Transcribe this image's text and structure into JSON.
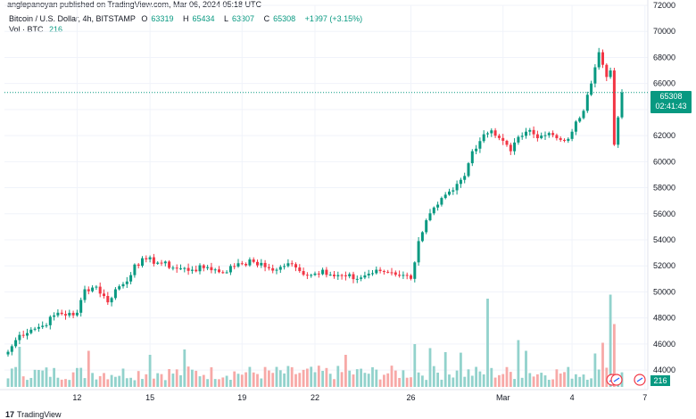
{
  "header": {
    "caption": "anglepanoyan published on TradingView.com, Mar 06, 2024 05:18 UTC"
  },
  "legend": {
    "symbol": "Bitcoin / U.S. Dollar, 4h, BITSTAMP",
    "o_label": "O",
    "o_value": "63319",
    "h_label": "H",
    "h_value": "65434",
    "l_label": "L",
    "l_value": "63307",
    "c_label": "C",
    "c_value": "65308",
    "change": "+1997 (+3.15%)",
    "vol_label": "Vol · BTC",
    "vol_value": "216"
  },
  "price_tag": {
    "price": "65308",
    "countdown": "02:41:43"
  },
  "volume_tag": {
    "value": "216"
  },
  "footer": {
    "logo_text": "TradingView"
  },
  "colors": {
    "up": "#089981",
    "down": "#f23645",
    "up_vol": "#92d2cc",
    "down_vol": "#f7a9a7",
    "grid": "#f0f3fa",
    "price_line": "#089981"
  },
  "chart_data": {
    "type": "candlestick",
    "ylim": [
      42500,
      72000
    ],
    "y_ticks": [
      44000,
      46000,
      48000,
      50000,
      52000,
      54000,
      56000,
      58000,
      60000,
      62000,
      64000,
      66000,
      68000,
      70000,
      72000
    ],
    "x_ticks": [
      "12",
      "15",
      "19",
      "22",
      "26",
      "Mar",
      "4",
      "7"
    ],
    "x_tick_index": [
      18,
      37,
      61,
      80,
      105,
      129,
      147,
      166
    ],
    "last_price": 65308,
    "anchors": [
      [
        0,
        45400
      ],
      [
        3,
        46700
      ],
      [
        6,
        47100
      ],
      [
        9,
        47400
      ],
      [
        13,
        48400
      ],
      [
        17,
        48200
      ],
      [
        18,
        48400
      ],
      [
        20,
        50200
      ],
      [
        23,
        50400
      ],
      [
        26,
        49200
      ],
      [
        28,
        50200
      ],
      [
        31,
        50800
      ],
      [
        33,
        52100
      ],
      [
        36,
        52500
      ],
      [
        40,
        52200
      ],
      [
        44,
        51800
      ],
      [
        48,
        51700
      ],
      [
        52,
        51900
      ],
      [
        56,
        51500
      ],
      [
        60,
        52200
      ],
      [
        64,
        52300
      ],
      [
        67,
        51900
      ],
      [
        70,
        51700
      ],
      [
        73,
        52200
      ],
      [
        76,
        51600
      ],
      [
        79,
        51300
      ],
      [
        82,
        51700
      ],
      [
        85,
        51200
      ],
      [
        88,
        51200
      ],
      [
        91,
        51000
      ],
      [
        94,
        51400
      ],
      [
        97,
        51600
      ],
      [
        100,
        51500
      ],
      [
        103,
        51300
      ],
      [
        105,
        51000
      ],
      [
        107,
        53900
      ],
      [
        109,
        55500
      ],
      [
        112,
        56700
      ],
      [
        116,
        57800
      ],
      [
        119,
        58900
      ],
      [
        121,
        60800
      ],
      [
        124,
        62100
      ],
      [
        126,
        62400
      ],
      [
        129,
        61600
      ],
      [
        131,
        60800
      ],
      [
        133,
        61900
      ],
      [
        135,
        62300
      ],
      [
        137,
        62100
      ],
      [
        139,
        62000
      ],
      [
        141,
        62200
      ],
      [
        143,
        61800
      ],
      [
        145,
        61600
      ],
      [
        147,
        62300
      ],
      [
        150,
        63900
      ],
      [
        152,
        66000
      ],
      [
        154,
        68400
      ],
      [
        156,
        66500
      ],
      [
        157,
        67000
      ],
      [
        158,
        61300
      ],
      [
        159,
        63400
      ],
      [
        160,
        65308
      ]
    ],
    "volume_ylim": [
      0,
      5000
    ],
    "volume_spikes": [
      [
        3,
        1500
      ],
      [
        21,
        1350
      ],
      [
        37,
        1200
      ],
      [
        46,
        1400
      ],
      [
        88,
        1200
      ],
      [
        106,
        1600
      ],
      [
        110,
        1450
      ],
      [
        114,
        1300
      ],
      [
        118,
        1280
      ],
      [
        125,
        3300
      ],
      [
        133,
        1750
      ],
      [
        135,
        1350
      ],
      [
        153,
        1250
      ],
      [
        155,
        1650
      ],
      [
        157,
        3450
      ],
      [
        158,
        2350
      ]
    ]
  }
}
